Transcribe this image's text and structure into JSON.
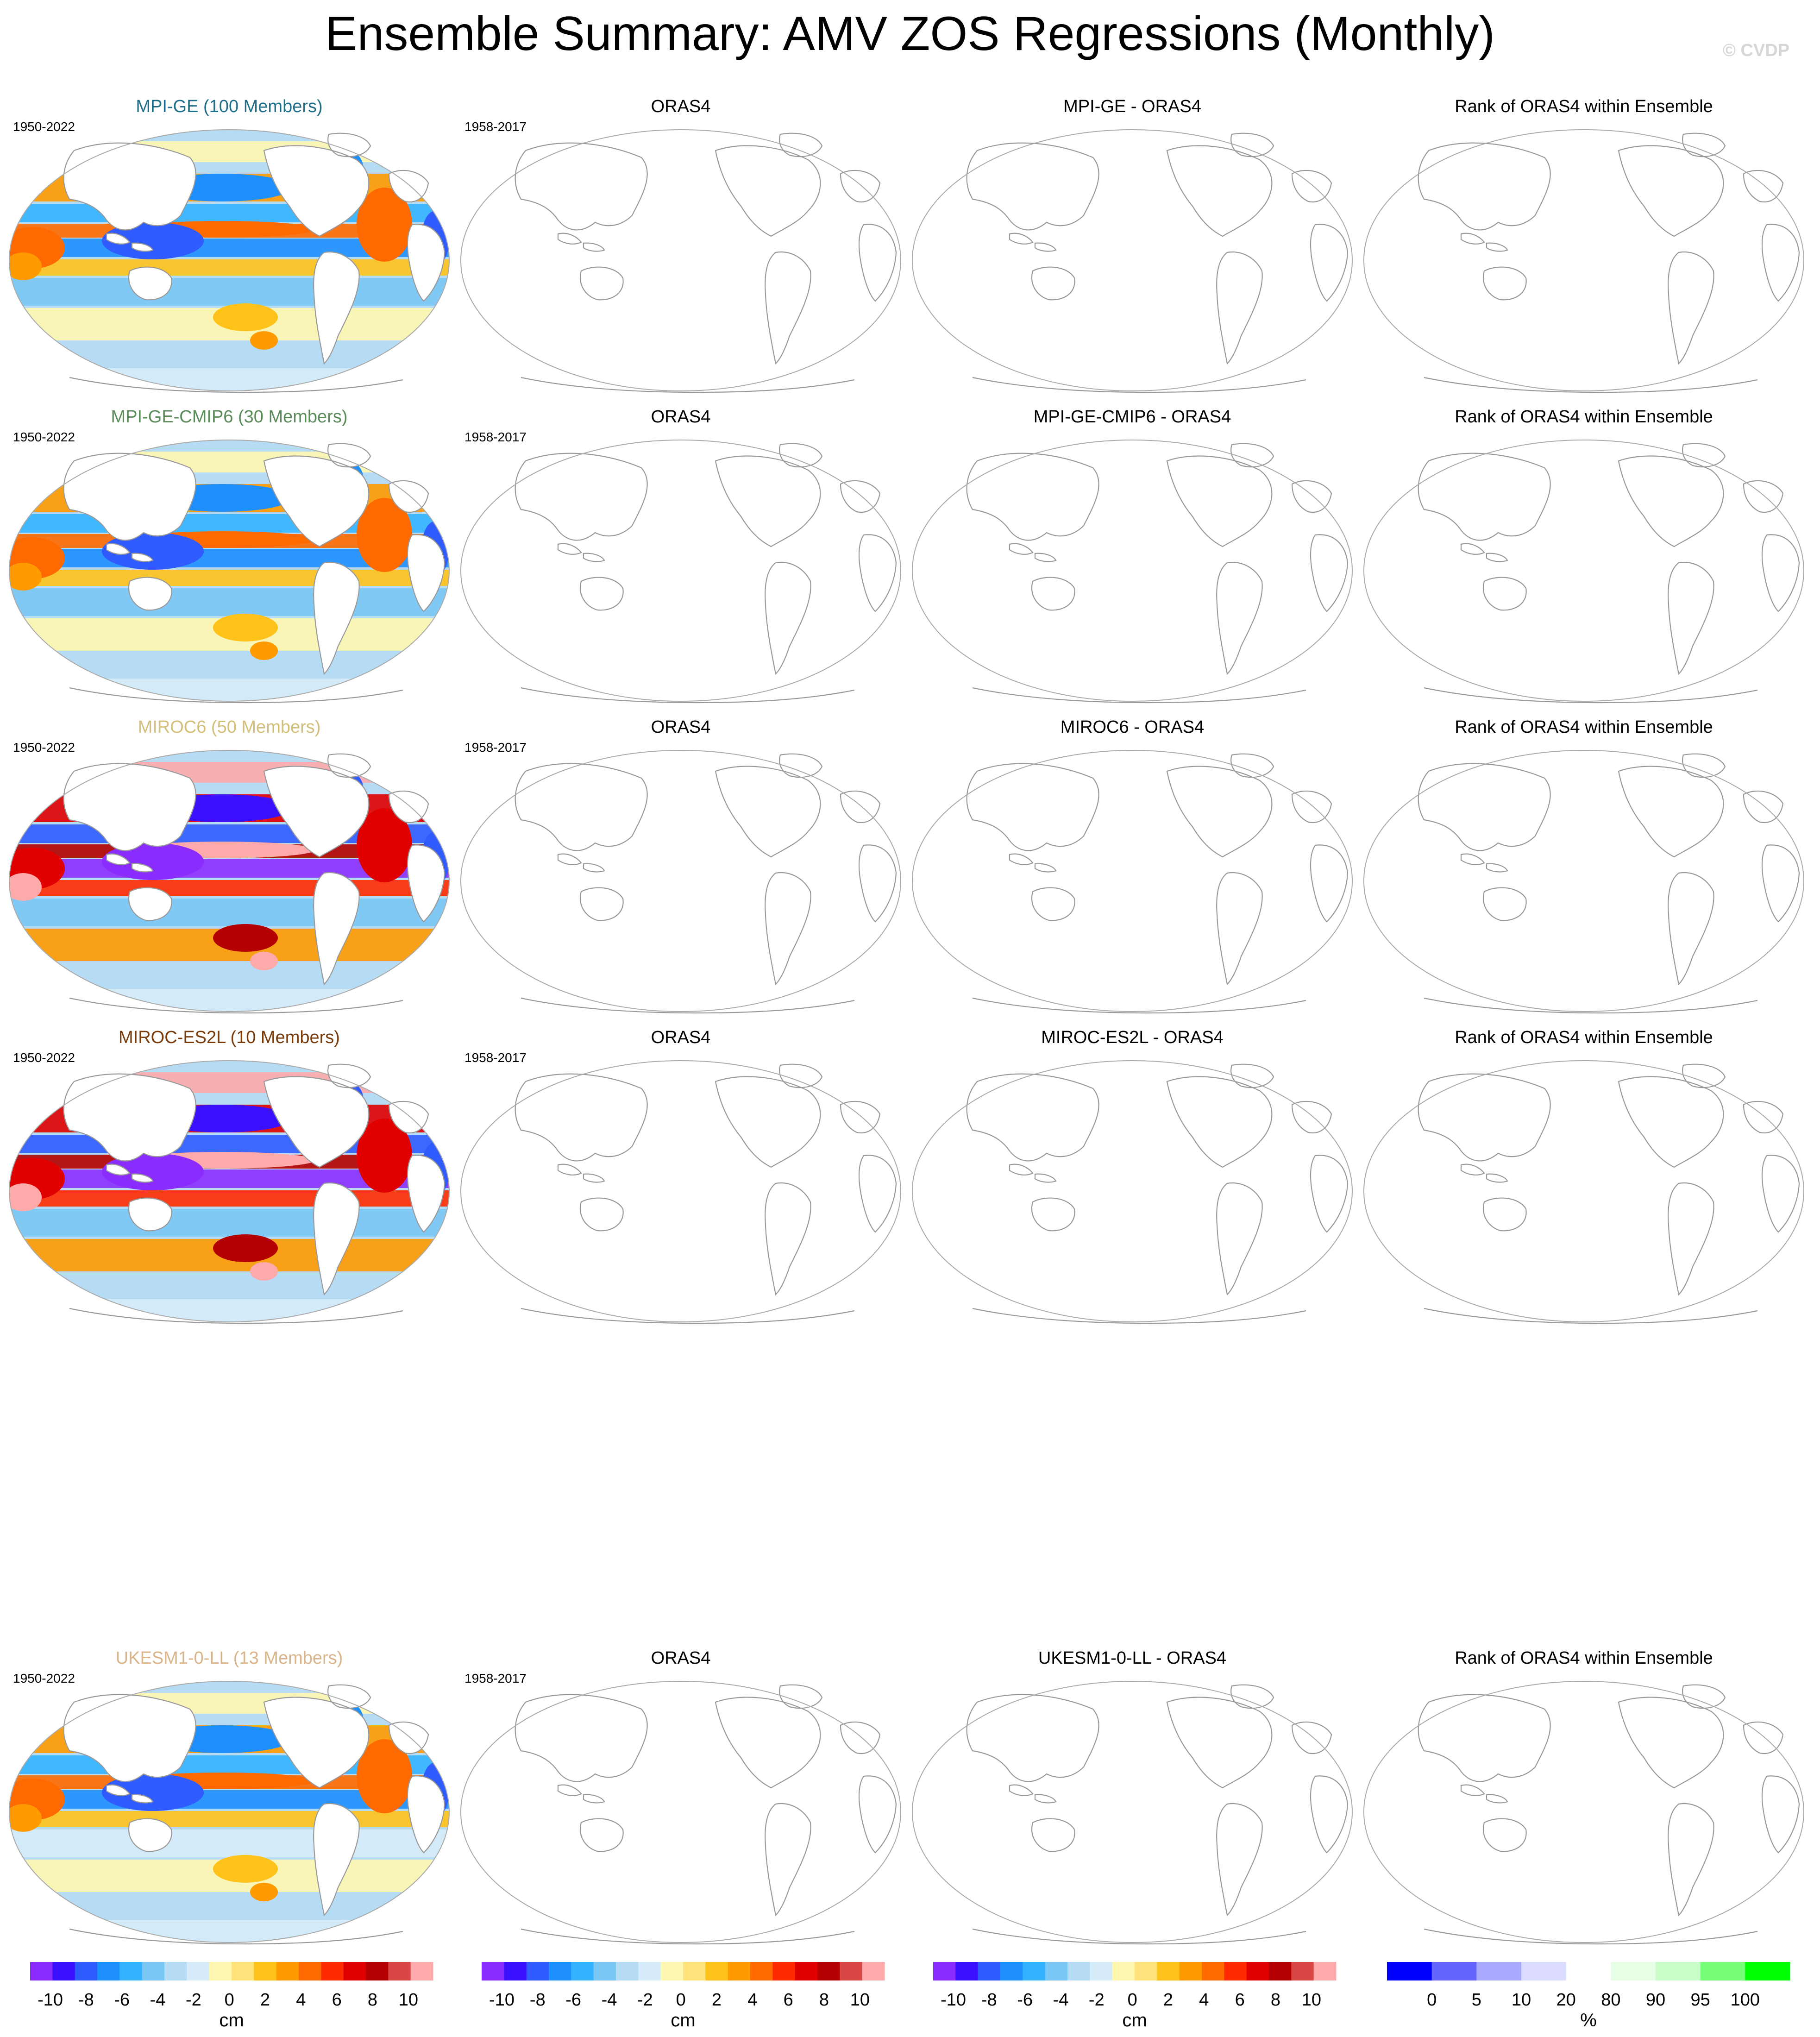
{
  "figure": {
    "title": "Ensemble Summary: AMV ZOS Regressions (Monthly)",
    "copyright": "© CVDP"
  },
  "colors": {
    "zos_scale": [
      "#8b2cff",
      "#3a10ff",
      "#2f5bff",
      "#1e8fff",
      "#33b3ff",
      "#7ac6f5",
      "#b6dcf5",
      "#d6ecfa",
      "#fff7b0",
      "#ffe27a",
      "#ffc21a",
      "#ff9a00",
      "#ff6a00",
      "#ff2b00",
      "#e00000",
      "#b40000",
      "#d94646",
      "#ffaaaa"
    ],
    "rank_scale": [
      "#0000ff",
      "#6464ff",
      "#aaaaff",
      "#dcdcff",
      "#ffffff",
      "#e6ffe6",
      "#c8ffc8",
      "#78ff78",
      "#00ff00"
    ],
    "land_line": "#999999",
    "title_colors": {
      "mpi_ge": "#1f6f8b",
      "mpi_ge_cmip6": "#5a8c5a",
      "miroc6": "#d2c07a",
      "miroc_es2l": "#7a3b0b",
      "ukesm": "#d9b48a"
    }
  },
  "rows": [
    {
      "model_title": "MPI-GE (100 Members)",
      "model_years": "1950-2022",
      "obs_title": "ORAS4",
      "obs_years": "1958-2017",
      "diff_title": "MPI-GE - ORAS4",
      "rank_title": "Rank of ORAS4 within Ensemble",
      "title_color": "#1f6f8b",
      "pattern": "moderate"
    },
    {
      "model_title": "MPI-GE-CMIP6 (30 Members)",
      "model_years": "1950-2022",
      "obs_title": "ORAS4",
      "obs_years": "1958-2017",
      "diff_title": "MPI-GE-CMIP6 - ORAS4",
      "rank_title": "Rank of ORAS4 within Ensemble",
      "title_color": "#5a8c5a",
      "pattern": "moderate"
    },
    {
      "model_title": "MIROC6 (50 Members)",
      "model_years": "1950-2022",
      "obs_title": "ORAS4",
      "obs_years": "1958-2017",
      "diff_title": "MIROC6 - ORAS4",
      "rank_title": "Rank of ORAS4 within Ensemble",
      "title_color": "#d2c07a",
      "pattern": "strong"
    },
    {
      "model_title": "MIROC-ES2L (10 Members)",
      "model_years": "1950-2022",
      "obs_title": "ORAS4",
      "obs_years": "1958-2017",
      "diff_title": "MIROC-ES2L - ORAS4",
      "rank_title": "Rank of ORAS4 within Ensemble",
      "title_color": "#7a3b0b",
      "pattern": "strong"
    },
    {
      "model_title": "UKESM1-0-LL (13 Members)",
      "model_years": "1950-2022",
      "obs_title": "ORAS4",
      "obs_years": "1958-2017",
      "diff_title": "UKESM1-0-LL - ORAS4",
      "rank_title": "Rank of ORAS4 within Ensemble",
      "title_color": "#d9b48a",
      "pattern": "weak"
    }
  ],
  "colorbars": {
    "zos": {
      "ticks": [
        "-10",
        "-8",
        "-6",
        "-4",
        "-2",
        "0",
        "2",
        "4",
        "6",
        "8",
        "10"
      ],
      "unit": "cm"
    },
    "rank": {
      "ticks": [
        "0",
        "5",
        "10",
        "20",
        "80",
        "90",
        "95",
        "100"
      ],
      "unit": "%"
    }
  },
  "chart_data": {
    "type": "heatmap",
    "title": "Ensemble Summary: AMV ZOS Regressions (Monthly)",
    "colorbar_zos": {
      "levels": [
        -10,
        -9,
        -8,
        -7,
        -6,
        -5,
        -4,
        -3,
        -2,
        -1,
        0,
        1,
        2,
        3,
        4,
        5,
        6,
        7,
        8,
        9,
        10
      ],
      "unit": "cm"
    },
    "colorbar_rank": {
      "levels": [
        0,
        5,
        10,
        20,
        80,
        90,
        95,
        100
      ],
      "unit": "%"
    },
    "panels": [
      {
        "row": "MPI-GE (100 Members)",
        "columns": [
          "model",
          "ORAS4",
          "MPI-GE - ORAS4",
          "Rank of ORAS4 within Ensemble"
        ],
        "filled": "model only"
      },
      {
        "row": "MPI-GE-CMIP6 (30 Members)",
        "columns": [
          "model",
          "ORAS4",
          "MPI-GE-CMIP6 - ORAS4",
          "Rank of ORAS4 within Ensemble"
        ],
        "filled": "model only"
      },
      {
        "row": "MIROC6 (50 Members)",
        "columns": [
          "model",
          "ORAS4",
          "MIROC6 - ORAS4",
          "Rank of ORAS4 within Ensemble"
        ],
        "filled": "model only"
      },
      {
        "row": "MIROC-ES2L (10 Members)",
        "columns": [
          "model",
          "ORAS4",
          "MIROC-ES2L - ORAS4",
          "Rank of ORAS4 within Ensemble"
        ],
        "filled": "model only"
      },
      {
        "row": "UKESM1-0-LL (13 Members)",
        "columns": [
          "model",
          "ORAS4",
          "UKESM1-0-LL - ORAS4",
          "Rank of ORAS4 within Ensemble"
        ],
        "filled": "model only"
      }
    ]
  }
}
